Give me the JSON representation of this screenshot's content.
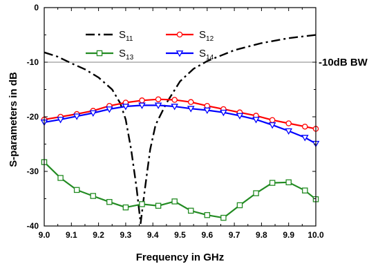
{
  "chart_data": {
    "type": "line",
    "xlabel": "Frequency in GHz",
    "ylabel": "S-parameters in dB",
    "xlim": [
      9.0,
      10.0
    ],
    "ylim": [
      -40,
      0
    ],
    "xticks": [
      "9.0",
      "9.1",
      "9.2",
      "9.3",
      "9.4",
      "9.5",
      "9.6",
      "9.7",
      "9.8",
      "9.9",
      "10.0"
    ],
    "yticks": [
      "0",
      "-10",
      "-20",
      "-30",
      "-40"
    ],
    "grid": false,
    "legend_position": "top-center",
    "reference_line": {
      "y": -10,
      "label": "-10dB BW",
      "color": "#808080"
    },
    "series": [
      {
        "name": "S11",
        "name_main": "S",
        "name_sub": "11",
        "color": "#000000",
        "style": "dashdot",
        "marker": "none",
        "x": [
          9.0,
          9.05,
          9.1,
          9.15,
          9.2,
          9.25,
          9.28,
          9.3,
          9.32,
          9.34,
          9.355,
          9.37,
          9.39,
          9.41,
          9.45,
          9.5,
          9.55,
          9.6,
          9.7,
          9.8,
          9.9,
          10.0
        ],
        "y": [
          -8.2,
          -9.0,
          -10.2,
          -11.3,
          -12.8,
          -15.0,
          -17.5,
          -20.5,
          -26.0,
          -33.0,
          -39.5,
          -33.5,
          -26.0,
          -21.5,
          -17.5,
          -13.5,
          -11.2,
          -9.8,
          -7.8,
          -6.5,
          -5.6,
          -5.0
        ]
      },
      {
        "name": "S12",
        "name_main": "S",
        "name_sub": "12",
        "color": "#ff0000",
        "style": "solid",
        "marker": "circle",
        "x": [
          9.0,
          9.06,
          9.12,
          9.18,
          9.24,
          9.3,
          9.36,
          9.42,
          9.48,
          9.54,
          9.6,
          9.66,
          9.72,
          9.78,
          9.84,
          9.9,
          9.96,
          10.0
        ],
        "y": [
          -20.5,
          -20.0,
          -19.5,
          -18.9,
          -18.0,
          -17.4,
          -17.0,
          -16.8,
          -16.9,
          -17.3,
          -18.0,
          -18.6,
          -19.2,
          -19.8,
          -20.6,
          -21.2,
          -21.8,
          -22.2
        ]
      },
      {
        "name": "S13",
        "name_main": "S",
        "name_sub": "13",
        "color": "#228b22",
        "style": "solid",
        "marker": "square",
        "x": [
          9.0,
          9.06,
          9.12,
          9.18,
          9.24,
          9.3,
          9.36,
          9.42,
          9.48,
          9.54,
          9.6,
          9.66,
          9.72,
          9.78,
          9.84,
          9.9,
          9.96,
          10.0
        ],
        "y": [
          -28.3,
          -31.2,
          -33.4,
          -34.5,
          -35.6,
          -36.6,
          -36.0,
          -36.3,
          -35.5,
          -37.2,
          -38.0,
          -38.5,
          -36.2,
          -34.0,
          -32.1,
          -32.0,
          -33.5,
          -35.1
        ]
      },
      {
        "name": "S14",
        "name_main": "S",
        "name_sub": "14",
        "color": "#0000ff",
        "style": "solid",
        "marker": "triangle-down",
        "x": [
          9.0,
          9.06,
          9.12,
          9.18,
          9.24,
          9.3,
          9.36,
          9.42,
          9.48,
          9.54,
          9.6,
          9.66,
          9.72,
          9.78,
          9.84,
          9.9,
          9.96,
          10.0
        ],
        "y": [
          -21.0,
          -20.5,
          -19.9,
          -19.3,
          -18.6,
          -18.1,
          -17.9,
          -17.9,
          -18.1,
          -18.5,
          -18.8,
          -19.2,
          -19.8,
          -20.5,
          -21.5,
          -22.6,
          -23.8,
          -24.9
        ]
      }
    ]
  }
}
